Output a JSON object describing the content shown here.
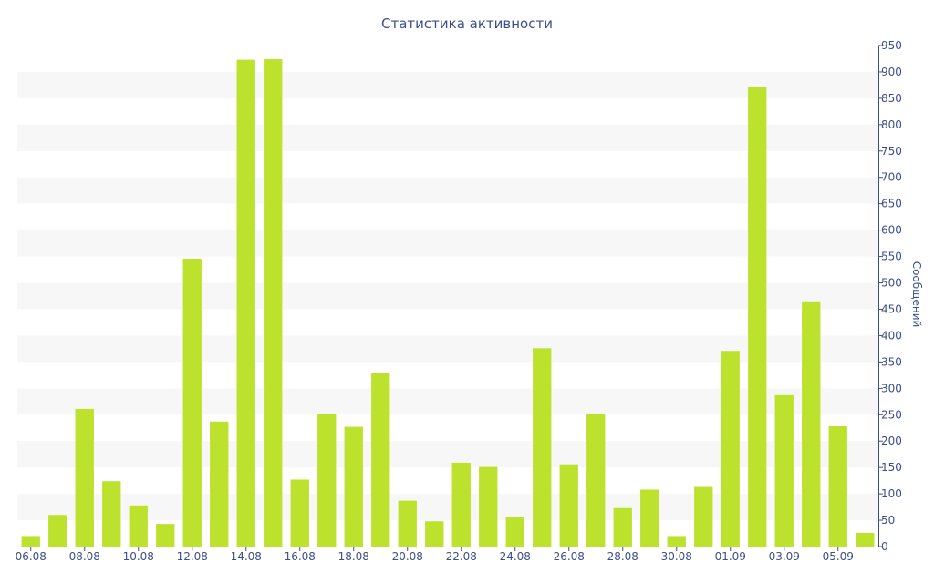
{
  "colors": {
    "bar": "#bde22e",
    "axis": "#3b4f8c",
    "band": "#f7f7f7",
    "text": "#3b4f8c"
  },
  "chart_data": {
    "type": "bar",
    "title": "Статистика активности",
    "xlabel": "",
    "ylabel": "Сообщений",
    "y_axis_side": "right",
    "ylim": [
      0,
      950
    ],
    "y_ticks": [
      0,
      50,
      100,
      150,
      200,
      250,
      300,
      350,
      400,
      450,
      500,
      550,
      600,
      650,
      700,
      750,
      800,
      850,
      900,
      950
    ],
    "grid": "alternating horizontal bands",
    "legend": "none",
    "categories": [
      "06.08",
      "07.08",
      "08.08",
      "09.08",
      "10.08",
      "11.08",
      "12.08",
      "13.08",
      "14.08",
      "15.08",
      "16.08",
      "17.08",
      "18.08",
      "19.08",
      "20.08",
      "21.08",
      "22.08",
      "23.08",
      "24.08",
      "25.08",
      "26.08",
      "27.08",
      "28.08",
      "29.08",
      "30.08",
      "31.08",
      "01.09",
      "02.09",
      "03.09",
      "04.09",
      "05.09",
      "06.09"
    ],
    "x_tick_labels": [
      "06.08",
      "08.08",
      "10.08",
      "12.08",
      "14.08",
      "16.08",
      "18.08",
      "20.08",
      "22.08",
      "24.08",
      "26.08",
      "28.08",
      "30.08",
      "01.09",
      "03.09",
      "05.09"
    ],
    "values": [
      20,
      60,
      261,
      124,
      78,
      43,
      546,
      237,
      923,
      924,
      127,
      252,
      227,
      329,
      87,
      48,
      159,
      151,
      56,
      376,
      156,
      252,
      73,
      108,
      20,
      113,
      371,
      872,
      287,
      465,
      228,
      26
    ]
  }
}
